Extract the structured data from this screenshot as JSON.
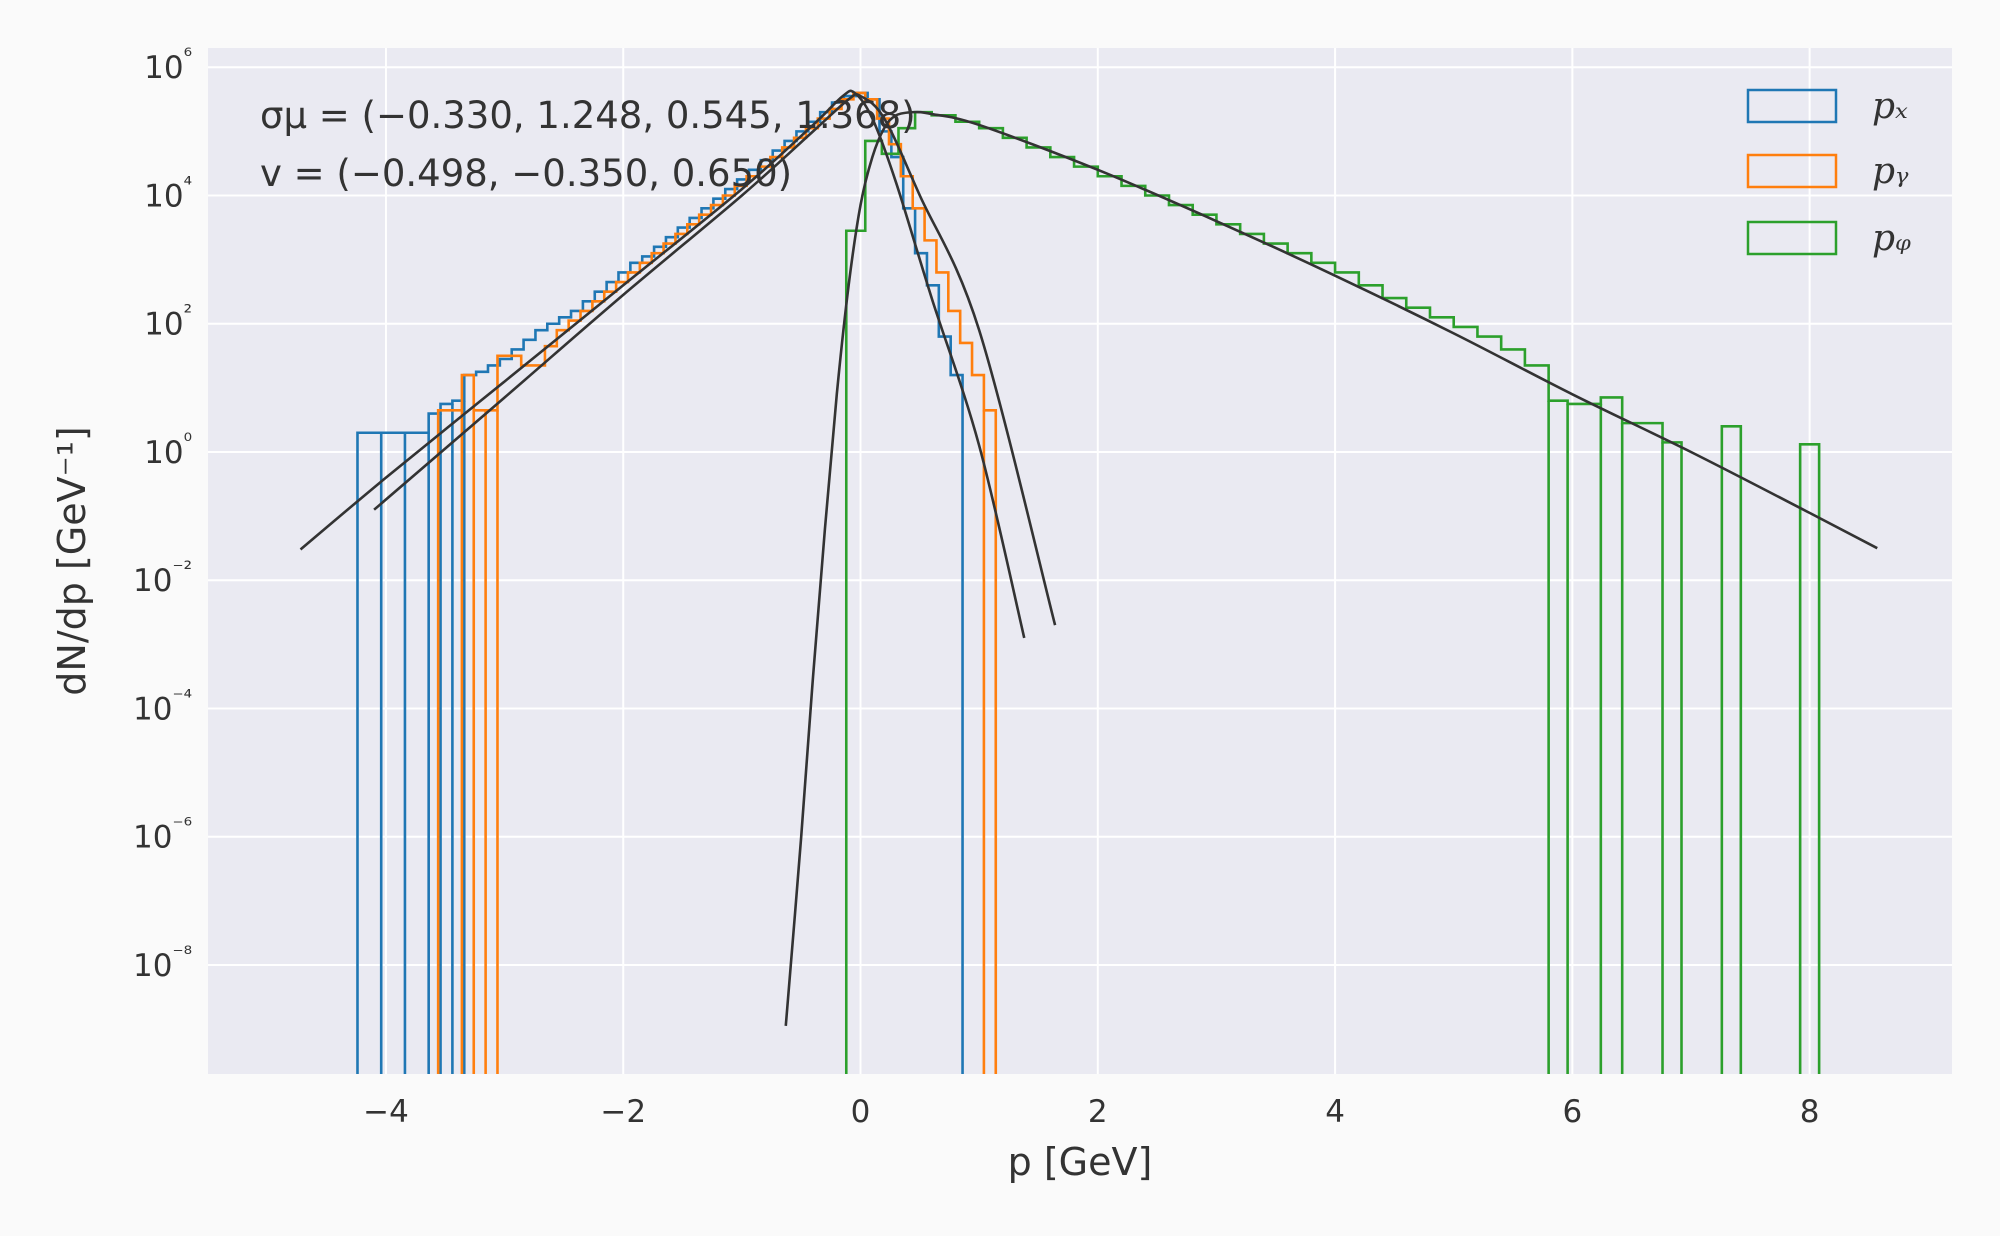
{
  "chart_data": {
    "type": "line",
    "title": "",
    "xlabel": "p [GeV]",
    "ylabel": "dN/dp [GeV⁻¹]",
    "xlim": [
      -5.5,
      9.2
    ],
    "ylim": [
      -9.7,
      6.3
    ],
    "yscale": "log",
    "grid": true,
    "legend_position": "top-right",
    "x_ticks": [
      -4,
      -2,
      0,
      2,
      4,
      6,
      8
    ],
    "x_tick_labels": [
      "−4",
      "−2",
      "0",
      "2",
      "4",
      "6",
      "8"
    ],
    "y_tick_exponents": [
      6,
      4,
      2,
      0,
      -2,
      -4,
      -6,
      -8
    ],
    "y_tick_labels": [
      "10⁶",
      "10⁴",
      "10²",
      "10⁰",
      "10⁻²",
      "10⁻⁴",
      "10⁻⁶",
      "10⁻⁸"
    ],
    "annotations": [
      "σμ = (−0.330, 1.248, 0.545, 1.368)",
      "v = (−0.498, −0.350, 0.650)"
    ],
    "colors": {
      "px": "#1f77b4",
      "py": "#ff7f0e",
      "pz": "#2ca02c",
      "fit": "#333333",
      "background": "#eaeaf2",
      "grid": "#ffffff"
    },
    "series": [
      {
        "name": "pₓ",
        "kind": "step-histogram",
        "color": "#1f77b4",
        "bin_edges": [
          -4.24,
          -4.04,
          -3.84,
          -3.64,
          -3.54,
          -3.44,
          -3.34,
          -3.24,
          -3.14,
          -3.04,
          -2.94,
          -2.84,
          -2.74,
          -2.64,
          -2.54,
          -2.44,
          -2.34,
          -2.24,
          -2.14,
          -2.04,
          -1.94,
          -1.84,
          -1.74,
          -1.64,
          -1.54,
          -1.44,
          -1.34,
          -1.24,
          -1.14,
          -1.04,
          -0.94,
          -0.84,
          -0.74,
          -0.64,
          -0.54,
          -0.44,
          -0.34,
          -0.24,
          -0.14,
          -0.04,
          0.06,
          0.16,
          0.26,
          0.36,
          0.46,
          0.56,
          0.66,
          0.76,
          0.86
        ],
        "log10_values": [
          0.3,
          0.3,
          0.3,
          0.6,
          0.75,
          0.8,
          1.2,
          1.25,
          1.35,
          1.45,
          1.6,
          1.75,
          1.9,
          2.0,
          2.1,
          2.2,
          2.35,
          2.5,
          2.65,
          2.8,
          2.95,
          3.05,
          3.2,
          3.35,
          3.5,
          3.65,
          3.8,
          3.95,
          4.1,
          4.25,
          4.4,
          4.55,
          4.7,
          4.85,
          5.0,
          5.15,
          5.3,
          5.45,
          5.55,
          5.6,
          5.5,
          5.0,
          4.6,
          3.8,
          3.1,
          2.6,
          1.8,
          1.2
        ]
      },
      {
        "name": "pᵧ",
        "kind": "step-histogram",
        "color": "#ff7f0e",
        "bin_edges": [
          -3.56,
          -3.36,
          -3.26,
          -3.16,
          -3.06,
          -2.86,
          -2.66,
          -2.56,
          -2.46,
          -2.36,
          -2.26,
          -2.16,
          -2.06,
          -1.96,
          -1.86,
          -1.76,
          -1.66,
          -1.56,
          -1.46,
          -1.36,
          -1.26,
          -1.16,
          -1.06,
          -0.96,
          -0.86,
          -0.76,
          -0.66,
          -0.56,
          -0.46,
          -0.36,
          -0.26,
          -0.16,
          -0.06,
          0.04,
          0.14,
          0.24,
          0.34,
          0.44,
          0.54,
          0.64,
          0.74,
          0.84,
          0.94,
          1.04,
          1.14
        ],
        "log10_values": [
          0.65,
          1.2,
          0.65,
          0.65,
          1.5,
          1.35,
          1.65,
          1.9,
          2.05,
          2.2,
          2.35,
          2.5,
          2.65,
          2.8,
          2.95,
          3.1,
          3.25,
          3.4,
          3.55,
          3.7,
          3.85,
          4.0,
          4.15,
          4.3,
          4.45,
          4.6,
          4.75,
          4.9,
          5.05,
          5.2,
          5.35,
          5.5,
          5.6,
          5.5,
          5.2,
          4.8,
          4.3,
          3.8,
          3.3,
          2.8,
          2.2,
          1.7,
          1.2,
          0.65
        ]
      },
      {
        "name": "pᵩ",
        "kind": "step-histogram",
        "color": "#2ca02c",
        "bin_edges": [
          -0.12,
          0.04,
          0.18,
          0.32,
          0.46,
          0.6,
          0.8,
          1.0,
          1.2,
          1.4,
          1.6,
          1.8,
          2.0,
          2.2,
          2.4,
          2.6,
          2.8,
          3.0,
          3.2,
          3.4,
          3.6,
          3.8,
          4.0,
          4.2,
          4.4,
          4.6,
          4.8,
          5.0,
          5.2,
          5.4,
          5.6,
          5.8,
          5.96,
          6.24,
          6.42,
          6.76,
          6.92
        ],
        "log10_values": [
          3.45,
          4.85,
          4.65,
          5.05,
          5.3,
          5.25,
          5.15,
          5.05,
          4.9,
          4.75,
          4.6,
          4.45,
          4.3,
          4.15,
          4.0,
          3.85,
          3.7,
          3.55,
          3.4,
          3.25,
          3.1,
          2.95,
          2.8,
          2.6,
          2.4,
          2.25,
          2.1,
          1.95,
          1.8,
          1.6,
          1.35,
          0.8,
          0.75,
          0.85,
          0.45,
          0.15
        ],
        "isolated_bins": [
          {
            "x0": 7.26,
            "x1": 7.42,
            "log10_value": 0.4
          },
          {
            "x0": 7.92,
            "x1": 8.08,
            "log10_value": 0.12
          }
        ]
      },
      {
        "name": "",
        "kind": "fit-curve",
        "color": "#333333",
        "x": [
          -4.72,
          -4.0,
          -3.0,
          -2.0,
          -1.0,
          -0.4,
          -0.15,
          -0.05,
          0.1,
          0.3,
          0.6,
          1.0,
          1.38
        ],
        "log10_values": [
          -1.52,
          -0.4,
          1.1,
          2.6,
          4.1,
          5.1,
          5.55,
          5.6,
          5.2,
          4.2,
          2.4,
          0.1,
          -2.9
        ]
      },
      {
        "name": "",
        "kind": "fit-curve",
        "color": "#333333",
        "x": [
          -4.1,
          -3.0,
          -2.0,
          -1.0,
          -0.4,
          -0.1,
          0.0,
          0.2,
          0.5,
          1.0,
          1.64
        ],
        "log10_values": [
          -0.9,
          0.85,
          2.45,
          4.0,
          5.0,
          5.5,
          5.55,
          5.2,
          4.0,
          1.9,
          -2.7
        ]
      },
      {
        "name": "",
        "kind": "fit-curve",
        "color": "#333333",
        "x": [
          -0.63,
          -0.5,
          -0.4,
          -0.3,
          -0.2,
          -0.1,
          0.0,
          0.1,
          0.2,
          0.3,
          0.45,
          0.6,
          1.0,
          2.0,
          3.0,
          4.0,
          5.0,
          6.0,
          7.0,
          8.0,
          8.57
        ],
        "log10_values": [
          -8.95,
          -6.0,
          -3.5,
          -1.2,
          0.9,
          2.6,
          3.85,
          4.6,
          5.05,
          5.25,
          5.3,
          5.27,
          5.1,
          4.4,
          3.6,
          2.75,
          1.85,
          0.9,
          0.0,
          -0.95,
          -1.5
        ]
      }
    ]
  }
}
